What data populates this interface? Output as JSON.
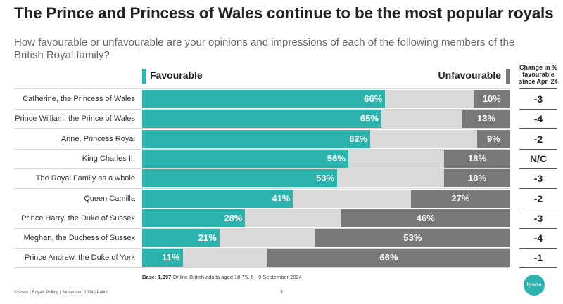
{
  "header": {
    "title": "The Prince and Princess of Wales continue to be the most popular royals",
    "subtitle": "How favourable or unfavourable are your opinions and impressions of each of the following members of the British Royal family?"
  },
  "legend": {
    "favourable": "Favourable",
    "unfavourable": "Unfavourable",
    "change_header": "Change in % favourable since Apr '24"
  },
  "colors": {
    "favourable": "#2bb3ad",
    "neutral": "#d9d9d9",
    "unfavourable": "#787878"
  },
  "chart_data": {
    "type": "bar",
    "stacked": true,
    "orientation": "horizontal",
    "title": "The Prince and Princess of Wales continue to be the most popular royals",
    "xlim": [
      0,
      100
    ],
    "categories": [
      "Catherine, the Princess of Wales",
      "Prince William, the Prince of Wales",
      "Anne, Princess Royal",
      "King Charles III",
      "The Royal Family as a whole",
      "Queen Camilla",
      "Prince Harry, the Duke of Sussex",
      "Meghan, the Duchess of Sussex",
      "Prince Andrew, the Duke of York"
    ],
    "series": [
      {
        "name": "Favourable",
        "values": [
          66,
          65,
          62,
          56,
          53,
          41,
          28,
          21,
          11
        ],
        "labels": [
          "66%",
          "65%",
          "62%",
          "56%",
          "53%",
          "41%",
          "28%",
          "21%",
          "11%"
        ]
      },
      {
        "name": "Unfavourable",
        "values": [
          10,
          13,
          9,
          18,
          18,
          27,
          46,
          53,
          66
        ],
        "labels": [
          "10%",
          "13%",
          "9%",
          "18%",
          "18%",
          "27%",
          "46%",
          "53%",
          "66%"
        ]
      }
    ],
    "change_since_apr_24": [
      "-3",
      "-4",
      "-2",
      "N/C",
      "-3",
      "-2",
      "-3",
      "-4",
      "-1"
    ]
  },
  "base_note": {
    "label": "Base:",
    "count": "1,097",
    "text": "Online British adults aged 18-75, 6 - 9 September 2024"
  },
  "footer": {
    "text": "© Ipsos | Royals Polling | September 2024 | Public",
    "page_number": "3",
    "logo": "Ipsos"
  }
}
